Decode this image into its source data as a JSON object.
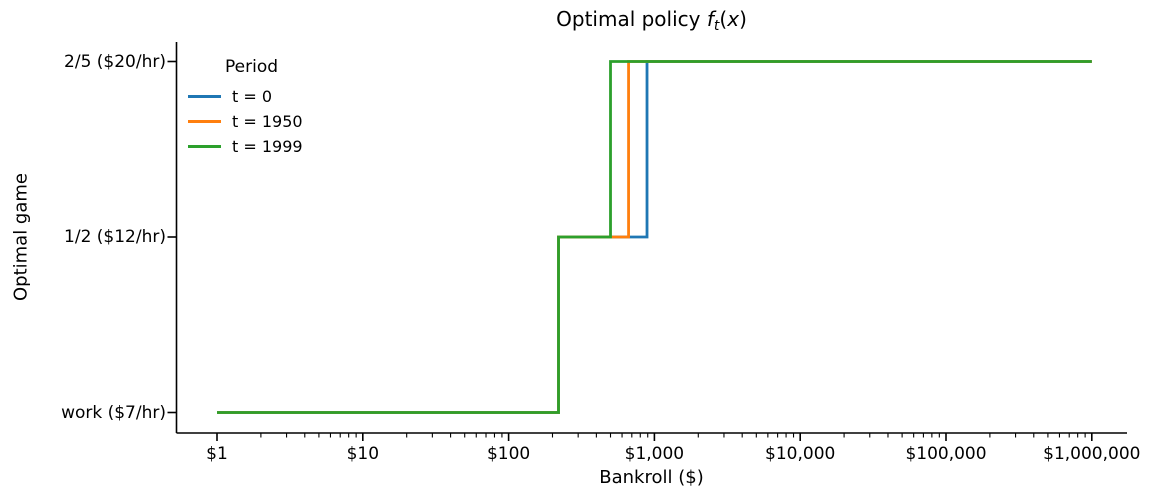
{
  "figure": {
    "title": {
      "prefix": "Optimal policy ",
      "f": "f",
      "sub": "t",
      "open": "(",
      "x": "x",
      "close": ")"
    },
    "xlabel": "Bankroll ($)",
    "ylabel": "Optimal game",
    "legend_title": "Period"
  },
  "chart_data": {
    "type": "line",
    "subtype": "step-post",
    "x_scale": "log",
    "title": "Optimal policy f_t(x)",
    "xlabel": "Bankroll ($)",
    "ylabel": "Optimal game",
    "x_range": [
      1,
      1000000
    ],
    "grid": false,
    "legend": {
      "title": "Period",
      "position": "upper left",
      "frame": false
    },
    "x_ticks": [
      {
        "value": 1,
        "label": "$1"
      },
      {
        "value": 10,
        "label": "$10"
      },
      {
        "value": 100,
        "label": "$100"
      },
      {
        "value": 1000,
        "label": "$1,000"
      },
      {
        "value": 10000,
        "label": "$10,000"
      },
      {
        "value": 100000,
        "label": "$100,000"
      },
      {
        "value": 1000000,
        "label": "$1,000,000"
      }
    ],
    "y_categories": [
      "work ($7/hr)",
      "1/2 ($12/hr)",
      "2/5 ($20/hr)"
    ],
    "series": [
      {
        "name": "t = 0",
        "color": "#1f77b4",
        "steps": [
          {
            "from": 1,
            "to": 220,
            "game": "work ($7/hr)"
          },
          {
            "from": 220,
            "to": 890,
            "game": "1/2 ($12/hr)"
          },
          {
            "from": 890,
            "to": 1000000,
            "game": "2/5 ($20/hr)"
          }
        ]
      },
      {
        "name": "t = 1950",
        "color": "#ff7f0e",
        "steps": [
          {
            "from": 1,
            "to": 220,
            "game": "work ($7/hr)"
          },
          {
            "from": 220,
            "to": 665,
            "game": "1/2 ($12/hr)"
          },
          {
            "from": 665,
            "to": 1000000,
            "game": "2/5 ($20/hr)"
          }
        ]
      },
      {
        "name": "t = 1999",
        "color": "#2ca02c",
        "steps": [
          {
            "from": 1,
            "to": 220,
            "game": "work ($7/hr)"
          },
          {
            "from": 220,
            "to": 500,
            "game": "1/2 ($12/hr)"
          },
          {
            "from": 500,
            "to": 1000000,
            "game": "2/5 ($20/hr)"
          }
        ]
      }
    ],
    "axis_color": "#000000"
  }
}
